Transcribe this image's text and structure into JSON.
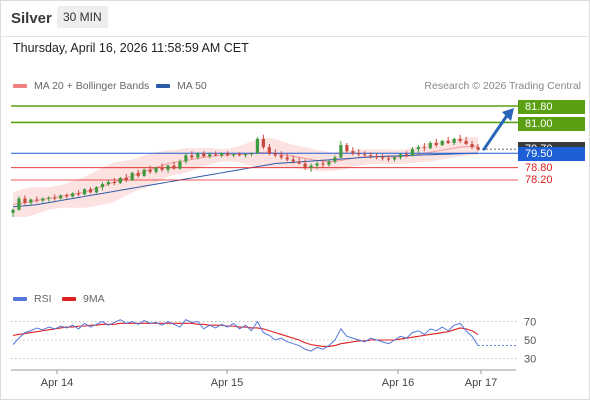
{
  "header": {
    "instrument": "Silver",
    "timeframe": "30 MIN",
    "datetime": "Thursday, April 16, 2026 11:58:59 AM CET"
  },
  "legend": {
    "bollinger": {
      "label": "MA 20 + Bollinger Bands",
      "color": "#f08080"
    },
    "ma50": {
      "label": "MA 50",
      "color": "#2a5ca8"
    },
    "copyright": "Research © 2026 Trading Central"
  },
  "levels": {
    "resistance": [
      {
        "label": "81.80",
        "value": 81.8,
        "color": "#5aa012"
      },
      {
        "label": "81.00",
        "value": 81.0,
        "color": "#5aa012"
      }
    ],
    "pivot": {
      "label": "79.50",
      "value": 79.5,
      "color": "#1c5fd6"
    },
    "current": {
      "label": "79.70",
      "value": 79.7,
      "color": "#3a3a3a"
    },
    "support": [
      {
        "label": "78.80",
        "value": 78.8,
        "color": "#e02020"
      },
      {
        "label": "78.20",
        "value": 78.2,
        "color": "#e02020"
      }
    ]
  },
  "indicator": {
    "rsi_label": "RSI",
    "rsi_color": "#5577dd",
    "ma_label": "9MA",
    "ma_color": "#e02020",
    "levels": [
      "70",
      "50",
      "30"
    ]
  },
  "chart_data": {
    "type": "candlestick",
    "x_ticks": [
      "Apr 14",
      "Apr 15",
      "Apr 16",
      "Apr 17"
    ],
    "y_range": [
      76.0,
      82.0
    ],
    "candles": [
      [
        76.6,
        76.8,
        76.4,
        76.75
      ],
      [
        76.75,
        77.4,
        76.7,
        77.3
      ],
      [
        77.3,
        77.45,
        77.0,
        77.1
      ],
      [
        77.1,
        77.3,
        76.95,
        77.25
      ],
      [
        77.25,
        77.4,
        77.1,
        77.2
      ],
      [
        77.2,
        77.35,
        77.1,
        77.3
      ],
      [
        77.3,
        77.4,
        77.15,
        77.35
      ],
      [
        77.35,
        77.5,
        77.2,
        77.3
      ],
      [
        77.3,
        77.5,
        77.25,
        77.45
      ],
      [
        77.45,
        77.55,
        77.3,
        77.4
      ],
      [
        77.4,
        77.6,
        77.35,
        77.55
      ],
      [
        77.55,
        77.7,
        77.4,
        77.5
      ],
      [
        77.5,
        77.8,
        77.45,
        77.75
      ],
      [
        77.75,
        77.85,
        77.55,
        77.6
      ],
      [
        77.6,
        77.9,
        77.55,
        77.85
      ],
      [
        77.85,
        78.1,
        77.7,
        78.0
      ],
      [
        78.0,
        78.2,
        77.9,
        78.1
      ],
      [
        78.1,
        78.3,
        77.95,
        78.05
      ],
      [
        78.05,
        78.35,
        78.0,
        78.3
      ],
      [
        78.3,
        78.5,
        78.1,
        78.2
      ],
      [
        78.2,
        78.6,
        78.15,
        78.55
      ],
      [
        78.55,
        78.7,
        78.3,
        78.4
      ],
      [
        78.4,
        78.75,
        78.35,
        78.7
      ],
      [
        78.7,
        78.9,
        78.5,
        78.6
      ],
      [
        78.6,
        78.85,
        78.5,
        78.8
      ],
      [
        78.8,
        79.0,
        78.6,
        78.7
      ],
      [
        78.7,
        78.95,
        78.55,
        78.9
      ],
      [
        78.9,
        79.1,
        78.7,
        78.75
      ],
      [
        78.75,
        79.2,
        78.7,
        79.1
      ],
      [
        79.1,
        79.5,
        79.0,
        79.4
      ],
      [
        79.4,
        79.6,
        79.2,
        79.3
      ],
      [
        79.3,
        79.55,
        79.2,
        79.5
      ],
      [
        79.5,
        79.6,
        79.3,
        79.35
      ],
      [
        79.35,
        79.55,
        79.25,
        79.45
      ],
      [
        79.45,
        79.6,
        79.35,
        79.4
      ],
      [
        79.4,
        79.55,
        79.3,
        79.5
      ],
      [
        79.5,
        79.6,
        79.35,
        79.4
      ],
      [
        79.4,
        79.5,
        79.3,
        79.45
      ],
      [
        79.45,
        79.55,
        79.35,
        79.4
      ],
      [
        79.4,
        79.5,
        79.3,
        79.45
      ],
      [
        79.45,
        79.55,
        79.35,
        79.5
      ],
      [
        79.5,
        80.3,
        79.45,
        80.2
      ],
      [
        80.2,
        80.4,
        79.7,
        79.8
      ],
      [
        79.8,
        79.95,
        79.4,
        79.5
      ],
      [
        79.5,
        79.7,
        79.3,
        79.4
      ],
      [
        79.4,
        79.6,
        79.2,
        79.3
      ],
      [
        79.3,
        79.5,
        79.1,
        79.2
      ],
      [
        79.2,
        79.4,
        79.0,
        79.1
      ],
      [
        79.1,
        79.3,
        78.95,
        79.0
      ],
      [
        79.0,
        79.2,
        78.7,
        78.8
      ],
      [
        78.8,
        79.0,
        78.6,
        78.9
      ],
      [
        78.9,
        79.1,
        78.75,
        79.0
      ],
      [
        79.0,
        79.2,
        78.8,
        78.95
      ],
      [
        78.95,
        79.15,
        78.85,
        79.1
      ],
      [
        79.1,
        79.4,
        79.0,
        79.3
      ],
      [
        79.3,
        80.1,
        79.25,
        79.9
      ],
      [
        79.9,
        80.0,
        79.5,
        79.6
      ],
      [
        79.6,
        79.8,
        79.4,
        79.5
      ],
      [
        79.5,
        79.7,
        79.35,
        79.45
      ],
      [
        79.45,
        79.6,
        79.3,
        79.4
      ],
      [
        79.4,
        79.55,
        79.25,
        79.35
      ],
      [
        79.35,
        79.5,
        79.2,
        79.3
      ],
      [
        79.3,
        79.45,
        79.15,
        79.25
      ],
      [
        79.25,
        79.4,
        79.1,
        79.2
      ],
      [
        79.2,
        79.35,
        79.1,
        79.3
      ],
      [
        79.3,
        79.5,
        79.2,
        79.45
      ],
      [
        79.45,
        79.6,
        79.3,
        79.4
      ],
      [
        79.4,
        79.8,
        79.35,
        79.7
      ],
      [
        79.7,
        79.9,
        79.5,
        79.8
      ],
      [
        79.8,
        80.0,
        79.6,
        79.75
      ],
      [
        79.75,
        80.1,
        79.7,
        80.0
      ],
      [
        80.0,
        80.2,
        79.8,
        79.9
      ],
      [
        79.9,
        80.15,
        79.85,
        80.1
      ],
      [
        80.1,
        80.3,
        79.95,
        80.0
      ],
      [
        80.0,
        80.25,
        79.9,
        80.2
      ],
      [
        80.2,
        80.4,
        80.0,
        80.1
      ],
      [
        80.1,
        80.3,
        79.9,
        79.95
      ],
      [
        79.95,
        80.1,
        79.7,
        79.8
      ],
      [
        79.8,
        79.95,
        79.6,
        79.7
      ]
    ],
    "ma20": [
      77.0,
      77.05,
      77.1,
      77.15,
      77.2,
      77.25,
      77.3,
      77.35,
      77.4,
      77.45,
      77.5,
      77.55,
      77.6,
      77.7,
      77.8,
      77.9,
      78.0,
      78.1,
      78.2,
      78.3,
      78.4,
      78.5,
      78.6,
      78.7,
      78.8,
      78.9,
      79.0,
      79.05,
      79.1,
      79.15,
      79.2,
      79.25,
      79.3,
      79.35,
      79.38,
      79.4,
      79.42,
      79.44,
      79.45,
      79.46,
      79.48,
      79.52,
      79.55,
      79.55,
      79.5,
      79.45,
      79.4,
      79.35,
      79.3,
      79.25,
      79.2,
      79.15,
      79.12,
      79.1,
      79.1,
      79.15,
      79.2,
      79.25,
      79.3,
      79.32,
      79.33,
      79.34,
      79.34,
      79.33,
      79.32,
      79.32,
      79.35,
      79.4,
      79.45,
      79.5,
      79.55,
      79.6,
      79.65,
      79.7,
      79.75,
      79.8,
      79.82,
      79.84,
      79.85
    ],
    "ma50": [
      76.9,
      76.92,
      76.95,
      76.97,
      77.0,
      77.05,
      77.1,
      77.15,
      77.2,
      77.25,
      77.3,
      77.35,
      77.4,
      77.45,
      77.5,
      77.55,
      77.6,
      77.65,
      77.7,
      77.75,
      77.8,
      77.85,
      77.9,
      77.95,
      78.0,
      78.05,
      78.1,
      78.15,
      78.2,
      78.25,
      78.3,
      78.35,
      78.4,
      78.45,
      78.5,
      78.55,
      78.6,
      78.65,
      78.7,
      78.75,
      78.8,
      78.85,
      78.9,
      78.95,
      79.0,
      79.02,
      79.04,
      79.06,
      79.08,
      79.1,
      79.12,
      79.14,
      79.16,
      79.18,
      79.2,
      79.22,
      79.24,
      79.26,
      79.28,
      79.3,
      79.32,
      79.34,
      79.35,
      79.36,
      79.37,
      79.38,
      79.39,
      79.4,
      79.41,
      79.42,
      79.43,
      79.44,
      79.45,
      79.46,
      79.47,
      79.48,
      79.49,
      79.5,
      79.5
    ],
    "band_width": [
      0.6,
      0.65,
      0.7,
      0.7,
      0.65,
      0.6,
      0.55,
      0.55,
      0.55,
      0.6,
      0.65,
      0.7,
      0.75,
      0.8,
      0.85,
      0.9,
      0.95,
      0.95,
      0.9,
      0.85,
      0.8,
      0.8,
      0.8,
      0.8,
      0.75,
      0.7,
      0.65,
      0.6,
      0.6,
      0.6,
      0.55,
      0.5,
      0.45,
      0.4,
      0.35,
      0.3,
      0.3,
      0.35,
      0.4,
      0.5,
      0.6,
      0.65,
      0.7,
      0.7,
      0.7,
      0.65,
      0.6,
      0.55,
      0.55,
      0.55,
      0.55,
      0.5,
      0.5,
      0.45,
      0.45,
      0.45,
      0.45,
      0.4,
      0.4,
      0.38,
      0.36,
      0.35,
      0.35,
      0.35,
      0.35,
      0.35,
      0.35,
      0.38,
      0.4,
      0.42,
      0.45,
      0.45,
      0.45,
      0.45,
      0.45,
      0.45,
      0.45,
      0.45,
      0.45
    ],
    "rsi": [
      45,
      52,
      58,
      60,
      63,
      61,
      64,
      62,
      65,
      63,
      66,
      62,
      68,
      64,
      67,
      70,
      66,
      69,
      72,
      68,
      70,
      67,
      71,
      68,
      69,
      66,
      70,
      67,
      64,
      72,
      69,
      70,
      62,
      66,
      63,
      67,
      64,
      68,
      62,
      66,
      60,
      70,
      58,
      55,
      50,
      52,
      48,
      46,
      44,
      40,
      38,
      42,
      40,
      44,
      50,
      62,
      54,
      52,
      50,
      48,
      52,
      50,
      48,
      46,
      50,
      54,
      52,
      58,
      60,
      56,
      62,
      60,
      64,
      60,
      66,
      68,
      60,
      54,
      44
    ],
    "rsi_ma": [
      55,
      56,
      57,
      58,
      59,
      60,
      61,
      62,
      63,
      64,
      64,
      65,
      65,
      66,
      66,
      67,
      67,
      67,
      68,
      68,
      68,
      68,
      68,
      68,
      68,
      68,
      68,
      68,
      68,
      68,
      68,
      67,
      67,
      66,
      66,
      66,
      65,
      65,
      64,
      64,
      63,
      63,
      62,
      60,
      58,
      56,
      54,
      52,
      50,
      47,
      45,
      44,
      43,
      43,
      44,
      46,
      47,
      48,
      49,
      49,
      50,
      50,
      50,
      50,
      50,
      51,
      52,
      53,
      54,
      55,
      56,
      57,
      58,
      59,
      61,
      63,
      62,
      60,
      56
    ],
    "rsi_range": [
      20,
      80
    ],
    "arrow": {
      "from_candle": 78,
      "to_value": 81.8
    }
  }
}
